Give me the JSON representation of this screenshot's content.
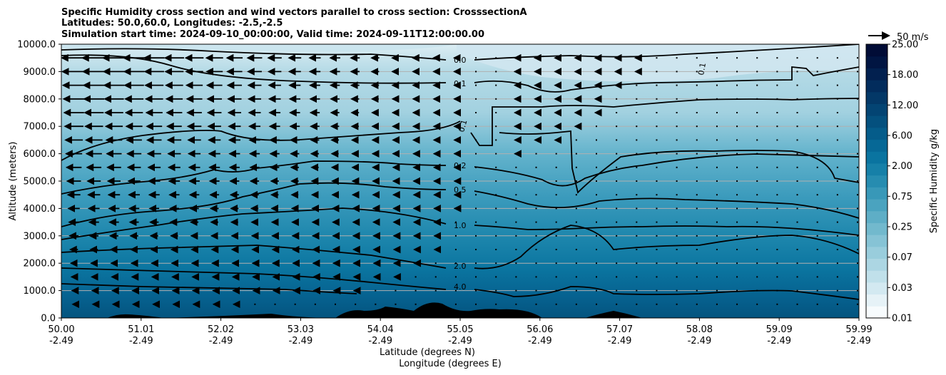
{
  "chart_data": {
    "type": "heatmap",
    "title_lines": [
      "Specific Humidity cross section and wind vectors parallel to cross section: CrosssectionA",
      "Latitudes: 50.0,60.0, Longitudes: -2.5,-2.5",
      "Simulation start time: 2024-09-10_00:00:00, Valid time: 2024-09-11T12:00:00.00"
    ],
    "xlabel_lines": [
      "Latitude (degrees N)",
      "Longitude (degrees E)"
    ],
    "ylabel": "Altitude (meters)",
    "x_ticks": [
      {
        "lat": "50.00",
        "lon": "-2.49"
      },
      {
        "lat": "51.01",
        "lon": "-2.49"
      },
      {
        "lat": "52.02",
        "lon": "-2.49"
      },
      {
        "lat": "53.03",
        "lon": "-2.49"
      },
      {
        "lat": "54.04",
        "lon": "-2.49"
      },
      {
        "lat": "55.05",
        "lon": "-2.49"
      },
      {
        "lat": "56.06",
        "lon": "-2.49"
      },
      {
        "lat": "57.07",
        "lon": "-2.49"
      },
      {
        "lat": "58.08",
        "lon": "-2.49"
      },
      {
        "lat": "59.09",
        "lon": "-2.49"
      },
      {
        "lat": "59.99",
        "lon": "-2.49"
      }
    ],
    "y_ticks": [
      "0.0",
      "1000.0",
      "2000.0",
      "3000.0",
      "4000.0",
      "5000.0",
      "6000.0",
      "7000.0",
      "8000.0",
      "9000.0",
      "10000.0"
    ],
    "ylim": [
      0,
      10000
    ],
    "grid": "horizontal",
    "colorbar": {
      "label": "Specific Humidity g/kg",
      "tick_labels": [
        "0.01",
        "0.03",
        "0.07",
        "0.25",
        "0.75",
        "2.00",
        "6.00",
        "12.00",
        "18.00",
        "25.00"
      ],
      "colors": [
        "#f7fbfd",
        "#e6f2f7",
        "#d3e9f1",
        "#c0e0ea",
        "#acd6e3",
        "#99cddc",
        "#86c3d5",
        "#72b9cd",
        "#5eaec6",
        "#4aa3bf",
        "#3898b8",
        "#268cb0",
        "#1680a8",
        "#0a74a0",
        "#066896",
        "#055c8a",
        "#04507e",
        "#034473",
        "#033867",
        "#022c5c",
        "#02204f",
        "#011542",
        "#010c36"
      ]
    },
    "quiver_key_label": "50 m/s",
    "contour_labels": [
      "0.0",
      "0.1",
      "0.1",
      "0.1",
      "0.2",
      "0.5",
      "1.0",
      "2.0",
      "4.0"
    ],
    "contour_levels": [
      0.0,
      0.1,
      0.2,
      0.5,
      1.0,
      2.0,
      4.0
    ],
    "wind_note_levels_m": [
      9500,
      9000,
      8500,
      8000,
      7500,
      7000,
      6500,
      6000,
      5500,
      5000,
      4500,
      4000,
      3500,
      3000,
      2500,
      2000,
      1500,
      1000,
      500
    ]
  }
}
